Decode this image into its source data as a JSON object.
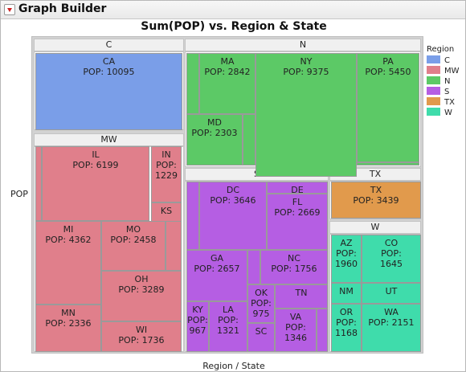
{
  "window": {
    "title": "Graph Builder"
  },
  "chart_data": {
    "type": "treemap",
    "title": "Sum(POP) vs. Region & State",
    "xlabel": "Region / State",
    "ylabel": "POP",
    "legend": {
      "title": "Region",
      "placement": "right"
    },
    "regions": [
      {
        "name": "C",
        "color": "#7a9ee8",
        "states": [
          {
            "state": "CA",
            "pop": 10095
          }
        ]
      },
      {
        "name": "MW",
        "color": "#e07f8b",
        "states": [
          {
            "state": "IL",
            "pop": 6199
          },
          {
            "state": "IN",
            "pop": 1229
          },
          {
            "state": "KS",
            "pop": null
          },
          {
            "state": "MI",
            "pop": 4362
          },
          {
            "state": "MO",
            "pop": 2458
          },
          {
            "state": "OH",
            "pop": 3289
          },
          {
            "state": "MN",
            "pop": 2336
          },
          {
            "state": "WI",
            "pop": 1736
          }
        ]
      },
      {
        "name": "N",
        "color": "#5cc966",
        "states": [
          {
            "state": "MA",
            "pop": 2842
          },
          {
            "state": "NY",
            "pop": 9375
          },
          {
            "state": "PA",
            "pop": 5450
          },
          {
            "state": "MD",
            "pop": 2303
          }
        ]
      },
      {
        "name": "S",
        "color": "#b55ee3",
        "states": [
          {
            "state": "DC",
            "pop": 3646
          },
          {
            "state": "DE",
            "pop": null
          },
          {
            "state": "FL",
            "pop": 2669
          },
          {
            "state": "GA",
            "pop": 2657
          },
          {
            "state": "NC",
            "pop": 1756
          },
          {
            "state": "OK",
            "pop": 975
          },
          {
            "state": "TN",
            "pop": null
          },
          {
            "state": "KY",
            "pop": 967
          },
          {
            "state": "LA",
            "pop": 1321
          },
          {
            "state": "SC",
            "pop": null
          },
          {
            "state": "VA",
            "pop": 1346
          }
        ]
      },
      {
        "name": "TX",
        "color": "#e19a4c",
        "states": [
          {
            "state": "TX",
            "pop": 3439
          }
        ]
      },
      {
        "name": "W",
        "color": "#3fdcab",
        "states": [
          {
            "state": "AZ",
            "pop": 1960
          },
          {
            "state": "CO",
            "pop": 1645
          },
          {
            "state": "NM",
            "pop": null
          },
          {
            "state": "UT",
            "pop": null
          },
          {
            "state": "OR",
            "pop": 1168
          },
          {
            "state": "WA",
            "pop": 2151
          }
        ]
      }
    ]
  }
}
